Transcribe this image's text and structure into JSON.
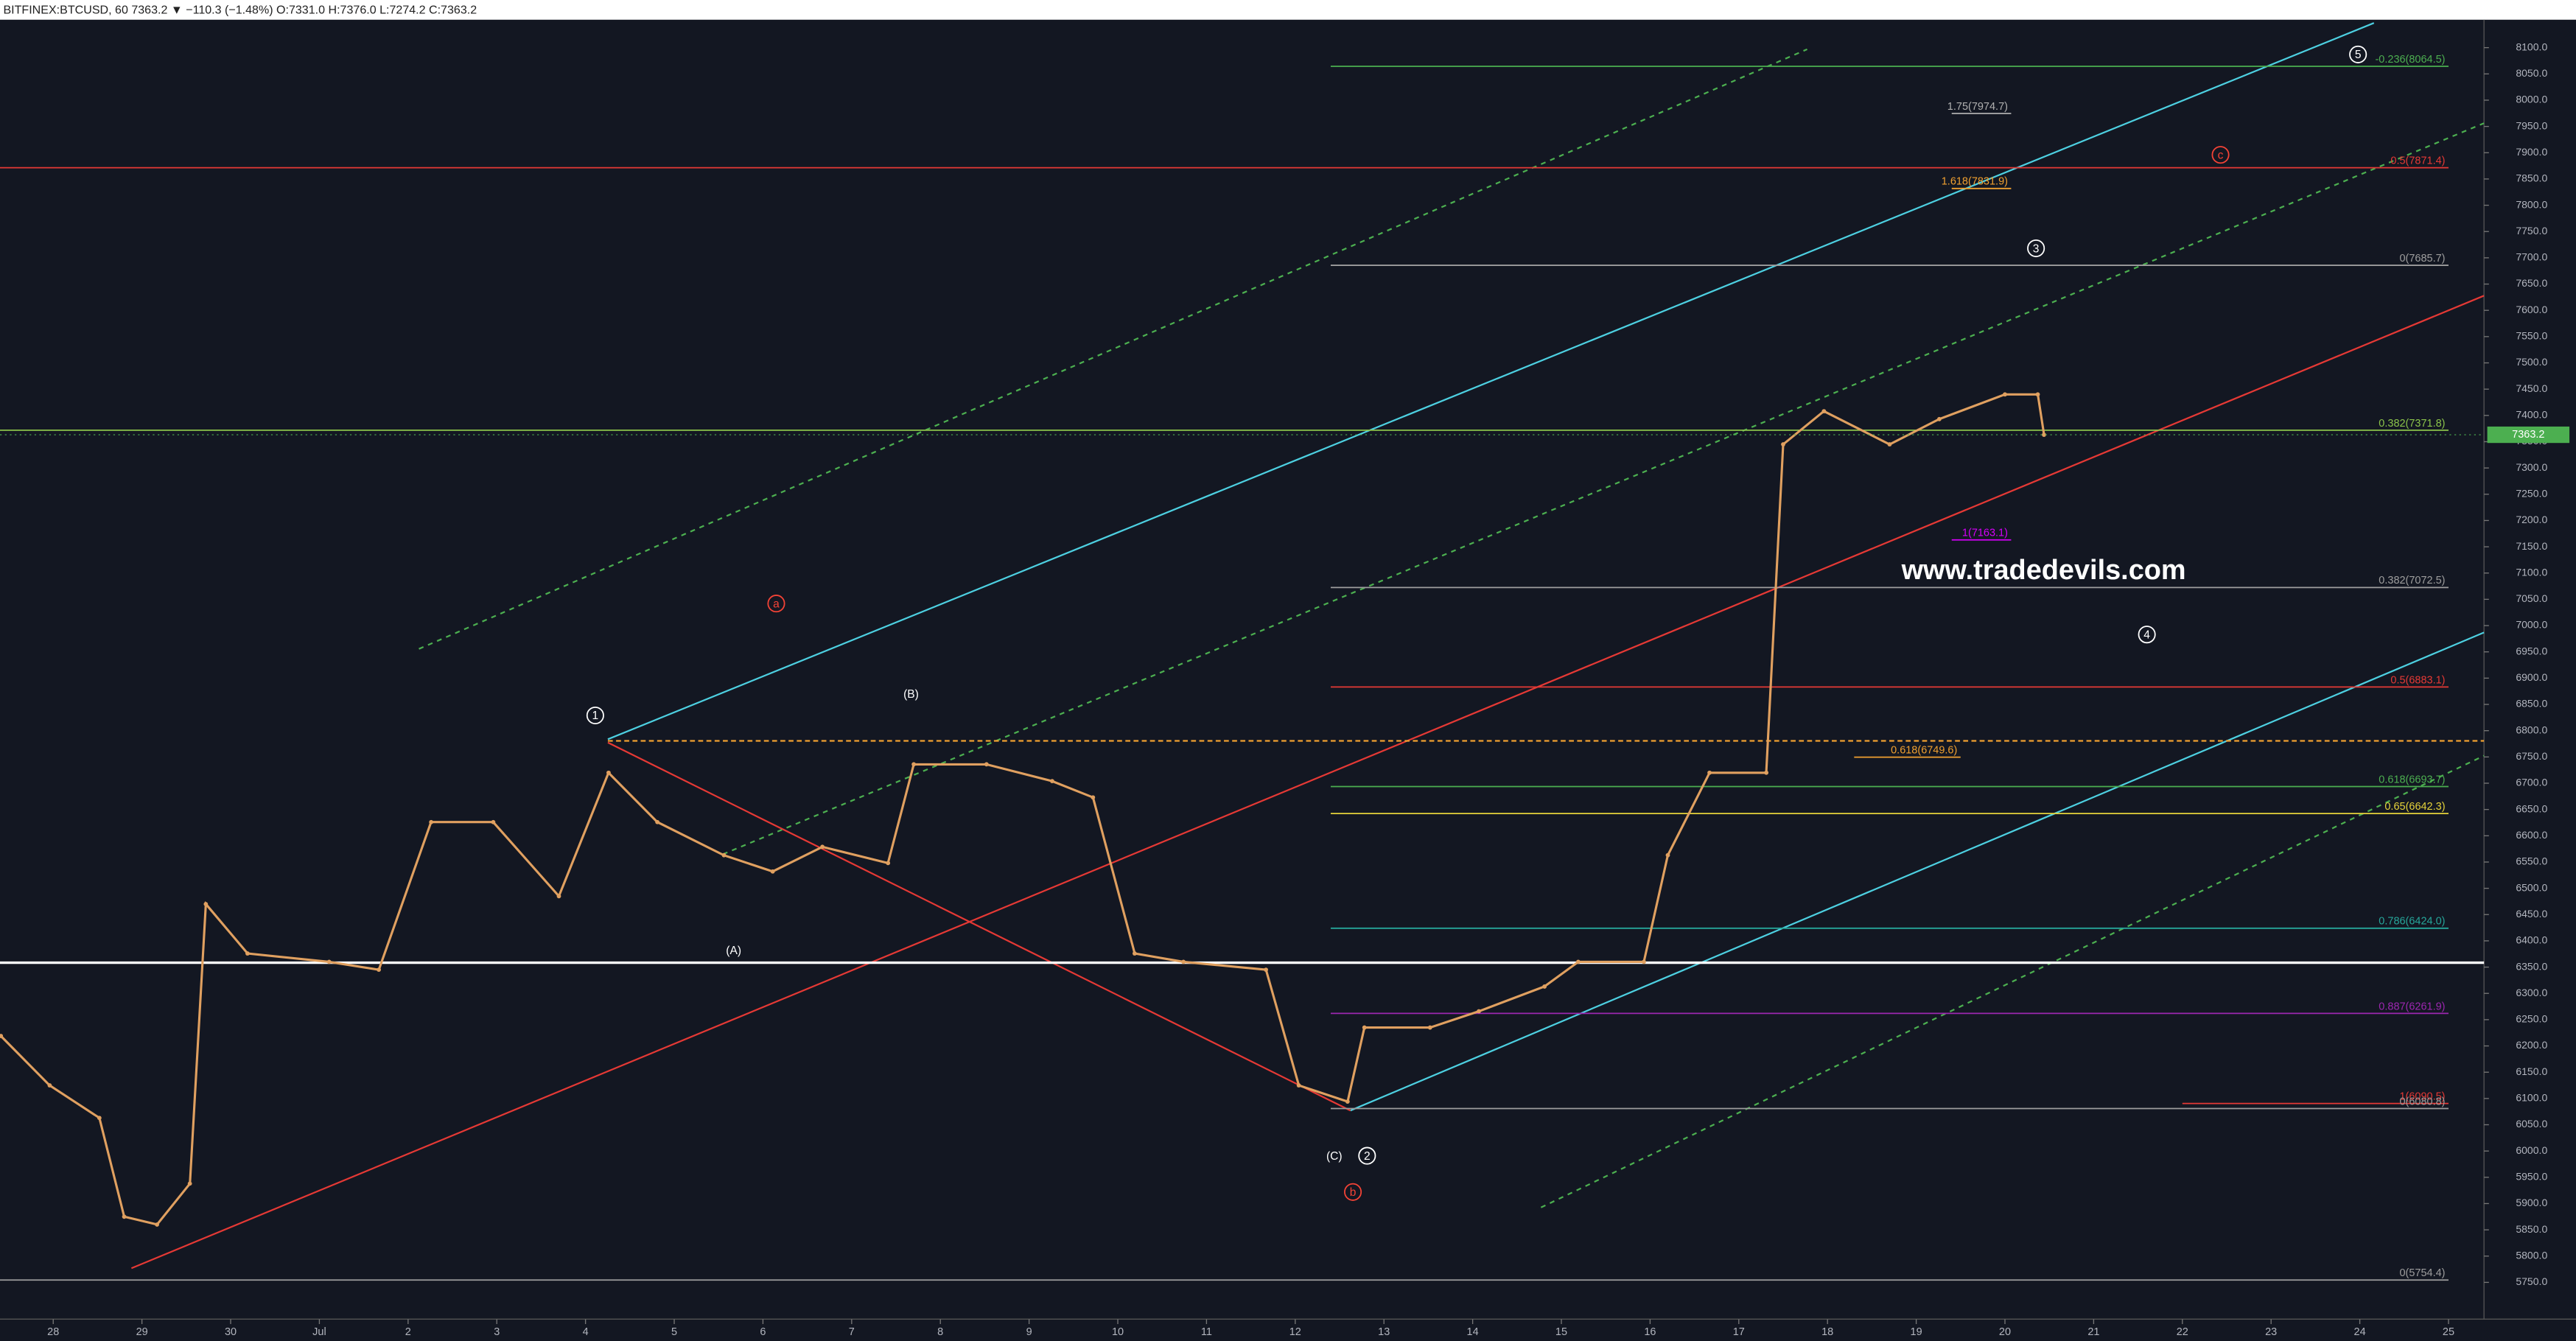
{
  "chart_data": {
    "type": "line",
    "header": "BITFINEX:BTCUSD, 60  7363.2 ▼ −110.3 (−1.48%)  O:7331.0  H:7376.0  L:7274.2  C:7363.2",
    "watermark": "www.tradedevils.com",
    "color": "#e0a060",
    "x": [
      -0.59,
      -0.04,
      0.52,
      0.8,
      1.17,
      1.54,
      1.72,
      2.19,
      3.11,
      3.67,
      4.26,
      4.96,
      5.7,
      6.26,
      6.81,
      7.56,
      8.11,
      8.67,
      9.41,
      9.7,
      10.52,
      11.26,
      11.72,
      12.19,
      12.74,
      13.67,
      14.04,
      14.59,
      14.78,
      15.52,
      16.07,
      16.81,
      17.19,
      17.93,
      18.2,
      18.67,
      19.31,
      19.5,
      19.96,
      20.7,
      21.26,
      22.0,
      22.37,
      22.44
    ],
    "values": [
      6219,
      6125,
      6063,
      5875,
      5860,
      5938,
      6470,
      6376,
      6360,
      6345,
      6626,
      6626,
      6485,
      6720,
      6626,
      6563,
      6532,
      6579,
      6548,
      6736,
      6736,
      6704,
      6673,
      6376,
      6360,
      6345,
      6125,
      6094,
      6235,
      6235,
      6266,
      6313,
      6360,
      6360,
      6563,
      6720,
      6720,
      7345,
      7408,
      7345,
      7393,
      7440,
      7440,
      7363.2
    ],
    "last_price": {
      "value": 7363.2,
      "label": "7363.2"
    },
    "xlim": [
      -0.6,
      27.4
    ],
    "ylim": [
      5680,
      8150
    ],
    "xticks": [
      {
        "value": 0,
        "label": "28"
      },
      {
        "value": 1,
        "label": "29"
      },
      {
        "value": 2,
        "label": "30"
      },
      {
        "value": 3,
        "label": "Jul"
      },
      {
        "value": 4,
        "label": "2"
      },
      {
        "value": 5,
        "label": "3"
      },
      {
        "value": 6,
        "label": "4"
      },
      {
        "value": 7,
        "label": "5"
      },
      {
        "value": 8,
        "label": "6"
      },
      {
        "value": 9,
        "label": "7"
      },
      {
        "value": 10,
        "label": "8"
      },
      {
        "value": 11,
        "label": "9"
      },
      {
        "value": 12,
        "label": "10"
      },
      {
        "value": 13,
        "label": "11"
      },
      {
        "value": 14,
        "label": "12"
      },
      {
        "value": 15,
        "label": "13"
      },
      {
        "value": 16,
        "label": "14"
      },
      {
        "value": 17,
        "label": "15"
      },
      {
        "value": 18,
        "label": "16"
      },
      {
        "value": 19,
        "label": "17"
      },
      {
        "value": 20,
        "label": "18"
      },
      {
        "value": 21,
        "label": "19"
      },
      {
        "value": 22,
        "label": "20"
      },
      {
        "value": 23,
        "label": "21"
      },
      {
        "value": 24,
        "label": "22"
      },
      {
        "value": 25,
        "label": "23"
      },
      {
        "value": 26,
        "label": "24"
      },
      {
        "value": 27,
        "label": "25"
      }
    ],
    "yticks": [
      {
        "value": 5750,
        "label": "5750.0"
      },
      {
        "value": 5800,
        "label": "5800.0"
      },
      {
        "value": 5850,
        "label": "5850.0"
      },
      {
        "value": 5900,
        "label": "5900.0"
      },
      {
        "value": 5950,
        "label": "5950.0"
      },
      {
        "value": 6000,
        "label": "6000.0"
      },
      {
        "value": 6050,
        "label": "6050.0"
      },
      {
        "value": 6100,
        "label": "6100.0"
      },
      {
        "value": 6150,
        "label": "6150.0"
      },
      {
        "value": 6200,
        "label": "6200.0"
      },
      {
        "value": 6250,
        "label": "6250.0"
      },
      {
        "value": 6300,
        "label": "6300.0"
      },
      {
        "value": 6350,
        "label": "6350.0"
      },
      {
        "value": 6400,
        "label": "6400.0"
      },
      {
        "value": 6450,
        "label": "6450.0"
      },
      {
        "value": 6500,
        "label": "6500.0"
      },
      {
        "value": 6550,
        "label": "6550.0"
      },
      {
        "value": 6600,
        "label": "6600.0"
      },
      {
        "value": 6650,
        "label": "6650.0"
      },
      {
        "value": 6700,
        "label": "6700.0"
      },
      {
        "value": 6750,
        "label": "6750.0"
      },
      {
        "value": 6800,
        "label": "6800.0"
      },
      {
        "value": 6850,
        "label": "6850.0"
      },
      {
        "value": 6900,
        "label": "6900.0"
      },
      {
        "value": 6950,
        "label": "6950.0"
      },
      {
        "value": 7000,
        "label": "7000.0"
      },
      {
        "value": 7050,
        "label": "7050.0"
      },
      {
        "value": 7100,
        "label": "7100.0"
      },
      {
        "value": 7150,
        "label": "7150.0"
      },
      {
        "value": 7200,
        "label": "7200.0"
      },
      {
        "value": 7250,
        "label": "7250.0"
      },
      {
        "value": 7300,
        "label": "7300.0"
      },
      {
        "value": 7350,
        "label": "7350.0"
      },
      {
        "value": 7400,
        "label": "7400.0"
      },
      {
        "value": 7450,
        "label": "7450.0"
      },
      {
        "value": 7500,
        "label": "7500.0"
      },
      {
        "value": 7550,
        "label": "7550.0"
      },
      {
        "value": 7600,
        "label": "7600.0"
      },
      {
        "value": 7650,
        "label": "7650.0"
      },
      {
        "value": 7700,
        "label": "7700.0"
      },
      {
        "value": 7750,
        "label": "7750.0"
      },
      {
        "value": 7800,
        "label": "7800.0"
      },
      {
        "value": 7850,
        "label": "7850.0"
      },
      {
        "value": 7900,
        "label": "7900.0"
      },
      {
        "value": 7950,
        "label": "7950.0"
      },
      {
        "value": 8000,
        "label": "8000.0"
      },
      {
        "value": 8050,
        "label": "8050.0"
      },
      {
        "value": 8100,
        "label": "8100.0"
      }
    ],
    "levels": [
      {
        "label": "-0.236(8064.5)",
        "value": 8064.5,
        "color": "#4caf50",
        "x": [
          14.4,
          27.0
        ]
      },
      {
        "label": "0.5(7871.4)",
        "value": 7871.4,
        "color": "#e53935",
        "x": [
          -0.6,
          27.0
        ]
      },
      {
        "label": "1.75(7974.7)",
        "value": 7974.7,
        "color": "#b0b0b0",
        "x": [
          21.4,
          22.07
        ]
      },
      {
        "label": "1.618(7831.9)",
        "value": 7831.9,
        "color": "#f0a030",
        "x": [
          21.4,
          22.07
        ]
      },
      {
        "label": "0(7685.7)",
        "value": 7685.7,
        "color": "#9e9e9e",
        "x": [
          14.4,
          27.0
        ]
      },
      {
        "label": "0.382(7371.8)",
        "value": 7371.8,
        "color": "#8bc34a",
        "x": [
          -0.6,
          27.0
        ]
      },
      {
        "label": "1(7163.1)",
        "value": 7163.1,
        "color": "#d500f9",
        "x": [
          21.4,
          22.07
        ]
      },
      {
        "label": "0.382(7072.5)",
        "value": 7072.5,
        "color": "#9e9e9e",
        "x": [
          14.4,
          27.0
        ]
      },
      {
        "label": "0.5(6883.1)",
        "value": 6883.1,
        "color": "#e53935",
        "x": [
          14.4,
          27.0
        ]
      },
      {
        "label": "0.618(6749.6)",
        "value": 6749.6,
        "color": "#f0a030",
        "x": [
          20.3,
          21.5
        ]
      },
      {
        "label": "0.618(6693.7)",
        "value": 6693.7,
        "color": "#4caf50",
        "x": [
          14.4,
          27.0
        ]
      },
      {
        "label": "0.65(6642.3)",
        "value": 6642.3,
        "color": "#e6d33a",
        "x": [
          14.4,
          27.0
        ]
      },
      {
        "label": "0.786(6424.0)",
        "value": 6424.0,
        "color": "#26a69a",
        "x": [
          14.4,
          27.0
        ]
      },
      {
        "label": "0.887(6261.9)",
        "value": 6261.9,
        "color": "#9c27b0",
        "x": [
          14.4,
          27.0
        ]
      },
      {
        "label": "1(6090.5)",
        "value": 6090.5,
        "color": "#e53935",
        "x": [
          24.0,
          27.0
        ]
      },
      {
        "label": "0(6080.8)",
        "value": 6080.8,
        "color": "#9e9e9e",
        "x": [
          14.4,
          27.0
        ]
      },
      {
        "label": "0(5754.4)",
        "value": 5754.4,
        "color": "#9e9e9e",
        "x": [
          -0.6,
          27.0
        ]
      }
    ],
    "wave_labels": [
      {
        "text": "1",
        "x": 6.11,
        "y": 6829,
        "color": "#ffffff",
        "circle": true
      },
      {
        "text": "2",
        "x": 14.81,
        "y": 5991,
        "color": "#ffffff",
        "circle": true
      },
      {
        "text": "3",
        "x": 22.35,
        "y": 7718,
        "color": "#ffffff",
        "circle": true
      },
      {
        "text": "4",
        "x": 23.6,
        "y": 6983,
        "color": "#ffffff",
        "circle": true
      },
      {
        "text": "5",
        "x": 25.98,
        "y": 8087,
        "color": "#ffffff",
        "circle": true
      },
      {
        "text": "a",
        "x": 8.15,
        "y": 7042,
        "color": "#f44336",
        "circle": true
      },
      {
        "text": "b",
        "x": 14.65,
        "y": 5922,
        "color": "#f44336",
        "circle": true
      },
      {
        "text": "c",
        "x": 24.43,
        "y": 7896,
        "color": "#f44336",
        "circle": true
      },
      {
        "text": "(A)",
        "x": 7.67,
        "y": 6382,
        "color": "#ffffff",
        "circle": false
      },
      {
        "text": "(B)",
        "x": 9.67,
        "y": 6870,
        "color": "#ffffff",
        "circle": false
      },
      {
        "text": "(C)",
        "x": 14.44,
        "y": 5991,
        "color": "#ffffff",
        "circle": false
      }
    ]
  }
}
